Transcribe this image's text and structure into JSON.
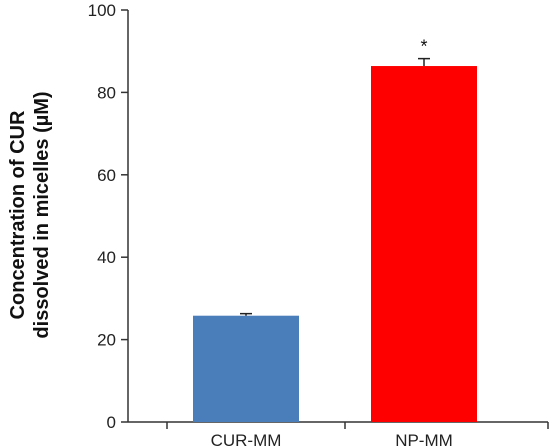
{
  "chart_data": {
    "type": "bar",
    "categories": [
      "CUR-MM",
      "NP-MM"
    ],
    "values": [
      25.8,
      86.4
    ],
    "errors": [
      0.5,
      1.8
    ],
    "colors": [
      "#4a7ebb",
      "#ff0000"
    ],
    "annotations": [
      "",
      "*"
    ],
    "title": "",
    "xlabel": "",
    "ylabel_lines": [
      "Concentration of CUR",
      "dissolved in micelles (µM)"
    ],
    "ylim": [
      0,
      100
    ],
    "yticks": [
      0,
      20,
      40,
      60,
      80,
      100
    ],
    "grid": false,
    "legend": "none"
  }
}
